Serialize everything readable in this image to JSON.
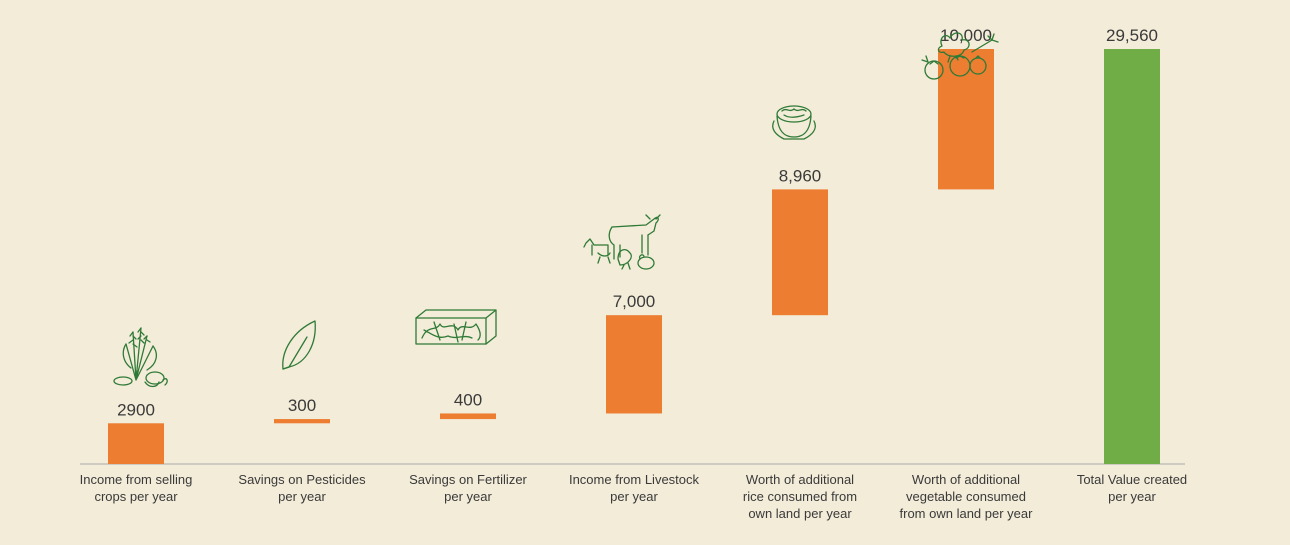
{
  "chart_data": {
    "type": "bar",
    "subtype": "waterfall",
    "categories": [
      [
        "Income from selling",
        "crops per year"
      ],
      [
        "Savings on Pesticides",
        "per year"
      ],
      [
        "Savings on Fertilizer",
        "per year"
      ],
      [
        "Income from Livestock",
        "per year"
      ],
      [
        "Worth of additional",
        "rice consumed from",
        "own land per year"
      ],
      [
        "Worth of additional",
        "vegetable consumed",
        "from own land per year"
      ],
      [
        "Total Value created",
        "per year"
      ]
    ],
    "value_labels": [
      "2900",
      "300",
      "400",
      "7,000",
      "8,960",
      "10,000",
      "29,560"
    ],
    "values": [
      2900,
      300,
      400,
      7000,
      8960,
      10000,
      29560
    ],
    "is_total": [
      false,
      false,
      false,
      false,
      false,
      false,
      true
    ],
    "icons": [
      "crops-icon",
      "leaf-icon",
      "fertilizer-box-icon",
      "livestock-icon",
      "rice-bowl-icon",
      "vegetables-icon",
      ""
    ],
    "ylim": [
      0,
      29560
    ],
    "grid": false,
    "title": "",
    "xlabel": "",
    "ylabel": "",
    "colors": {
      "increment": "#ed7d31",
      "total": "#70ad47",
      "icon": "#2f7a36",
      "baseline": "#aaaaaa",
      "background": "#f3ecd9"
    }
  }
}
